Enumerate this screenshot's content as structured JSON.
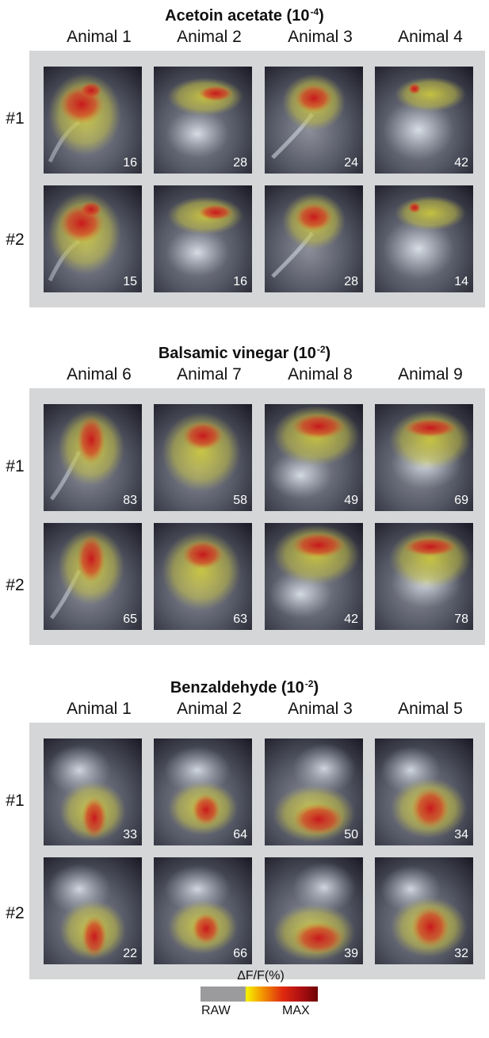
{
  "sections": [
    {
      "title": "Acetoin acetate (10",
      "title_exp": "-4",
      "title_end": ")",
      "columns": [
        "Animal 1",
        "Animal 2",
        "Animal 3",
        "Animal 4"
      ],
      "rows": [
        {
          "label": "#1",
          "values": [
            "16",
            "28",
            "24",
            "42"
          ]
        },
        {
          "label": "#2",
          "values": [
            "15",
            "16",
            "28",
            "14"
          ]
        }
      ]
    },
    {
      "title": "Balsamic vinegar (10",
      "title_exp": "-2",
      "title_end": ")",
      "columns": [
        "Animal 6",
        "Animal 7",
        "Animal 8",
        "Animal 9"
      ],
      "rows": [
        {
          "label": "#1",
          "values": [
            "83",
            "58",
            "49",
            "69"
          ]
        },
        {
          "label": "#2",
          "values": [
            "65",
            "63",
            "42",
            "78"
          ]
        }
      ]
    },
    {
      "title": "Benzaldehyde (10",
      "title_exp": "-2",
      "title_end": ")",
      "columns": [
        "Animal 1",
        "Animal 2",
        "Animal 3",
        "Animal 5"
      ],
      "rows": [
        {
          "label": "#1",
          "values": [
            "33",
            "64",
            "50",
            "34"
          ]
        },
        {
          "label": "#2",
          "values": [
            "22",
            "66",
            "39",
            "32"
          ]
        }
      ]
    }
  ],
  "legend": {
    "title": "ΔF/F(%)",
    "min_label": "RAW",
    "max_label": "MAX"
  },
  "colors": {
    "panel_bg": "#d5d6d8",
    "raw_gray": "#9b9b9d",
    "heat_low": "#f6f300",
    "heat_mid": "#e02a10",
    "heat_high": "#6d0405"
  }
}
